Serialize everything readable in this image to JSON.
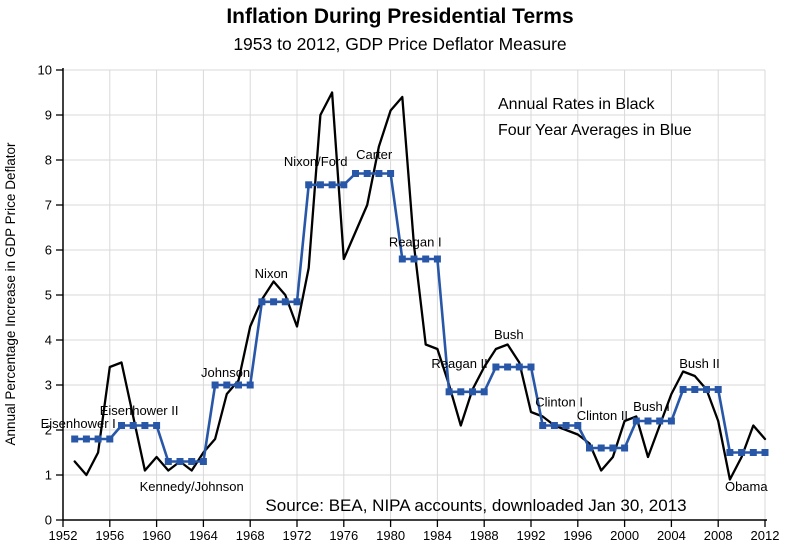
{
  "chart_data": {
    "type": "line",
    "title": "Inflation During Presidential Terms",
    "subtitle": "1953 to 2012, GDP Price Deflator Measure",
    "xlabel": "",
    "ylabel": "Annual Percentage Increase in GDP Price Deflator",
    "source_note": "Source:  BEA, NIPA accounts, downloaded Jan 30, 2013",
    "xlim": [
      1952,
      2012
    ],
    "ylim": [
      0,
      10
    ],
    "x_ticks": [
      1952,
      1956,
      1960,
      1964,
      1968,
      1972,
      1976,
      1980,
      1984,
      1988,
      1992,
      1996,
      2000,
      2004,
      2008,
      2012
    ],
    "y_ticks": [
      0,
      1,
      2,
      3,
      4,
      5,
      6,
      7,
      8,
      9,
      10
    ],
    "grid": true,
    "legend_position": "top-right-inside",
    "legend": [
      {
        "label": "Annual Rates in Black",
        "color": "#000000"
      },
      {
        "label": "Four Year Averages in Blue",
        "color": "#2857a8"
      }
    ],
    "colors": {
      "annual": "#000000",
      "average": "#2857a8",
      "gridline": "#d9d9d9",
      "axis": "#000000"
    },
    "series": [
      {
        "name": "Annual Rates",
        "style": "line",
        "color": "#000000",
        "x": [
          1953,
          1954,
          1955,
          1956,
          1957,
          1958,
          1959,
          1960,
          1961,
          1962,
          1963,
          1964,
          1965,
          1966,
          1967,
          1968,
          1969,
          1970,
          1971,
          1972,
          1973,
          1974,
          1975,
          1976,
          1977,
          1978,
          1979,
          1980,
          1981,
          1982,
          1983,
          1984,
          1985,
          1986,
          1987,
          1988,
          1989,
          1990,
          1991,
          1992,
          1993,
          1994,
          1995,
          1996,
          1997,
          1998,
          1999,
          2000,
          2001,
          2002,
          2003,
          2004,
          2005,
          2006,
          2007,
          2008,
          2009,
          2010,
          2011,
          2012
        ],
        "values": [
          1.3,
          1.0,
          1.5,
          3.4,
          3.5,
          2.3,
          1.1,
          1.4,
          1.1,
          1.3,
          1.1,
          1.5,
          1.8,
          2.8,
          3.1,
          4.3,
          4.9,
          5.3,
          5.0,
          4.3,
          5.6,
          9.0,
          9.5,
          5.8,
          6.4,
          7.0,
          8.3,
          9.1,
          9.4,
          6.1,
          3.9,
          3.8,
          3.0,
          2.1,
          2.9,
          3.4,
          3.8,
          3.9,
          3.5,
          2.4,
          2.3,
          2.1,
          2.0,
          1.9,
          1.7,
          1.1,
          1.4,
          2.2,
          2.3,
          1.4,
          2.1,
          2.8,
          3.3,
          3.2,
          2.9,
          2.2,
          0.9,
          1.4,
          2.1,
          1.8
        ]
      },
      {
        "name": "Four Year Averages",
        "style": "step-line-with-square-markers",
        "color": "#2857a8",
        "terms": [
          {
            "label": "Eisenhower I",
            "start_year": 1953,
            "end_year": 1956,
            "value": 1.8
          },
          {
            "label": "Eisenhower II",
            "start_year": 1957,
            "end_year": 1960,
            "value": 2.1
          },
          {
            "label": "Kennedy/Johnson",
            "start_year": 1961,
            "end_year": 1964,
            "value": 1.3
          },
          {
            "label": "Johnson",
            "start_year": 1965,
            "end_year": 1968,
            "value": 3.0
          },
          {
            "label": "Nixon",
            "start_year": 1969,
            "end_year": 1972,
            "value": 4.85
          },
          {
            "label": "Nixon/Ford",
            "start_year": 1973,
            "end_year": 1976,
            "value": 7.45
          },
          {
            "label": "Carter",
            "start_year": 1977,
            "end_year": 1980,
            "value": 7.7
          },
          {
            "label": "Reagan I",
            "start_year": 1981,
            "end_year": 1984,
            "value": 5.8
          },
          {
            "label": "Reagan II",
            "start_year": 1985,
            "end_year": 1988,
            "value": 2.85
          },
          {
            "label": "Bush",
            "start_year": 1989,
            "end_year": 1992,
            "value": 3.4
          },
          {
            "label": "Clinton I",
            "start_year": 1993,
            "end_year": 1996,
            "value": 2.1
          },
          {
            "label": "Clinton II",
            "start_year": 1997,
            "end_year": 2000,
            "value": 1.6
          },
          {
            "label": "Bush I",
            "start_year": 2001,
            "end_year": 2004,
            "value": 2.2
          },
          {
            "label": "Bush II",
            "start_year": 2005,
            "end_year": 2008,
            "value": 2.9
          },
          {
            "label": "Obama",
            "start_year": 2009,
            "end_year": 2012,
            "value": 1.5
          }
        ]
      }
    ]
  }
}
